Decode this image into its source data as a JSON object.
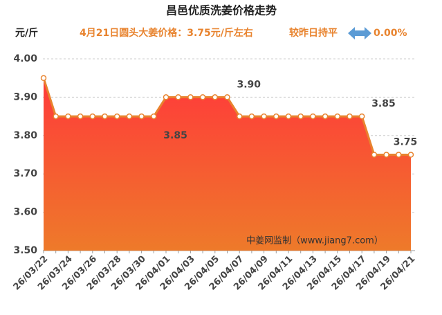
{
  "chart_data": {
    "type": "area",
    "title": "昌邑优质洗姜价格走势",
    "y_label": "元/斤",
    "subtitle": "4月21日圆头大姜价格：3.75元/斤左右",
    "change_text": "较昨日持平",
    "change_value": "0.00%",
    "watermark": "中姜网监制（www.jiang7.com）",
    "categories": [
      "26/03/22",
      null,
      "26/03/24",
      null,
      "26/03/26",
      null,
      "26/03/28",
      null,
      "26/03/30",
      null,
      "26/04/01",
      null,
      "26/04/03",
      null,
      "26/04/05",
      null,
      "26/04/07",
      null,
      "26/04/09",
      null,
      "26/04/11",
      null,
      "26/04/13",
      null,
      "26/04/15",
      null,
      "26/04/17",
      null,
      "26/04/19",
      null,
      "26/04/21"
    ],
    "values": [
      3.95,
      3.85,
      3.85,
      3.85,
      3.85,
      3.85,
      3.85,
      3.85,
      3.85,
      3.85,
      3.9,
      3.9,
      3.9,
      3.9,
      3.9,
      3.9,
      3.85,
      3.85,
      3.85,
      3.85,
      3.85,
      3.85,
      3.85,
      3.85,
      3.85,
      3.85,
      3.85,
      3.75,
      3.75,
      3.75,
      3.75
    ],
    "value_labels": [
      null,
      null,
      null,
      null,
      null,
      null,
      null,
      null,
      null,
      "3.85",
      null,
      null,
      null,
      null,
      null,
      "3.90",
      null,
      null,
      null,
      null,
      null,
      null,
      null,
      null,
      null,
      null,
      "3.85",
      null,
      null,
      null,
      "3.75"
    ],
    "color": "#e8832e",
    "ylim": [
      3.5,
      4.0
    ],
    "yticks": [
      {
        "value": 3.5,
        "label": "3.50"
      },
      {
        "value": 3.6,
        "label": "3.60"
      },
      {
        "value": 3.7,
        "label": "3.70"
      },
      {
        "value": 3.8,
        "label": "3.80"
      },
      {
        "value": 3.9,
        "label": "3.90"
      },
      {
        "value": 4.0,
        "label": "4.00"
      }
    ],
    "grid": true
  }
}
